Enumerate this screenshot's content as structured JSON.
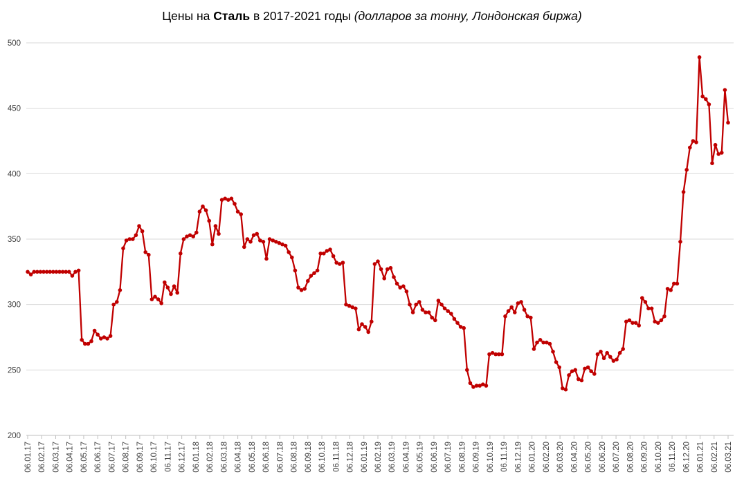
{
  "title": {
    "prefix": "Цены на ",
    "subject_bold": "Сталь",
    "middle": " в 2017-2021 годы ",
    "note_italic": "(долларов за тонну, Лондонская биржа)"
  },
  "chart_data": {
    "type": "line",
    "title": "Цены на Сталь в 2017-2021 годы (долларов за тонну, Лондонская биржа)",
    "grid": true,
    "legend": "none",
    "ylim": [
      200,
      500
    ],
    "y_ticks": [
      200,
      250,
      300,
      350,
      400,
      450,
      500
    ],
    "x_labels": [
      "06.01.17",
      "06.02.17",
      "06.03.17",
      "06.04.17",
      "06.05.17",
      "06.06.17",
      "06.07.17",
      "06.08.17",
      "06.09.17",
      "06.10.17",
      "06.11.17",
      "06.12.17",
      "06.01.18",
      "06.02.18",
      "06.03.18",
      "06.04.18",
      "06.05.18",
      "06.06.18",
      "06.07.18",
      "06.08.18",
      "06.09.18",
      "06.10.18",
      "06.11.18",
      "06.12.18",
      "06.01.19",
      "06.02.19",
      "06.03.19",
      "06.04.19",
      "06.05.19",
      "06.06.19",
      "06.07.19",
      "06.08.19",
      "06.09.19",
      "06.10.19",
      "06.11.19",
      "06.12.19",
      "06.01.20",
      "06.02.20",
      "06.03.20",
      "06.04.20",
      "06.05.20",
      "06.06.20",
      "06.07.20",
      "06.08.20",
      "06.09.20",
      "06.10.20",
      "06.11.20",
      "06.12.20",
      "06.01.21",
      "06.02.21",
      "06.03.21"
    ],
    "values": [
      325,
      323,
      325,
      325,
      325,
      325,
      325,
      325,
      325,
      325,
      325,
      325,
      325,
      325,
      322,
      325,
      326,
      273,
      270,
      270,
      272,
      280,
      277,
      274,
      275,
      274,
      276,
      300,
      302,
      311,
      343,
      349,
      350,
      350,
      353,
      360,
      356,
      340,
      338,
      304,
      306,
      304,
      301,
      317,
      313,
      308,
      314,
      309,
      339,
      350,
      352,
      353,
      352,
      355,
      371,
      375,
      372,
      364,
      346,
      360,
      354,
      380,
      381,
      380,
      381,
      377,
      371,
      369,
      344,
      350,
      348,
      353,
      354,
      349,
      348,
      335,
      350,
      349,
      348,
      347,
      346,
      345,
      340,
      336,
      326,
      313,
      311,
      312,
      318,
      322,
      324,
      326,
      339,
      339,
      341,
      342,
      337,
      332,
      331,
      332,
      300,
      299,
      298,
      297,
      281,
      285,
      283,
      279,
      287,
      331,
      333,
      327,
      320,
      327,
      328,
      321,
      316,
      313,
      314,
      310,
      300,
      294,
      300,
      302,
      296,
      294,
      294,
      290,
      288,
      303,
      300,
      297,
      295,
      293,
      289,
      286,
      283,
      282,
      250,
      240,
      237,
      238,
      238,
      239,
      238,
      262,
      263,
      262,
      262,
      262,
      291,
      295,
      298,
      294,
      301,
      302,
      296,
      291,
      290,
      266,
      271,
      273,
      271,
      271,
      270,
      264,
      256,
      252,
      236,
      235,
      246,
      249,
      250,
      243,
      242,
      251,
      252,
      249,
      247,
      262,
      264,
      259,
      263,
      260,
      257,
      258,
      263,
      266,
      287,
      288,
      286,
      286,
      284,
      305,
      302,
      297,
      297,
      287,
      286,
      288,
      291,
      312,
      311,
      316,
      316,
      348,
      386,
      403,
      420,
      425,
      424,
      489,
      459,
      457,
      453,
      408,
      422,
      415,
      416,
      464,
      439
    ],
    "colors": {
      "line": "#C00000",
      "marker": "#C00000",
      "gridline": "#D9D9D9",
      "axis_line": "#BFBFBF",
      "tick_label": "#404040",
      "title_text": "#000000",
      "background": "#FFFFFF"
    }
  }
}
